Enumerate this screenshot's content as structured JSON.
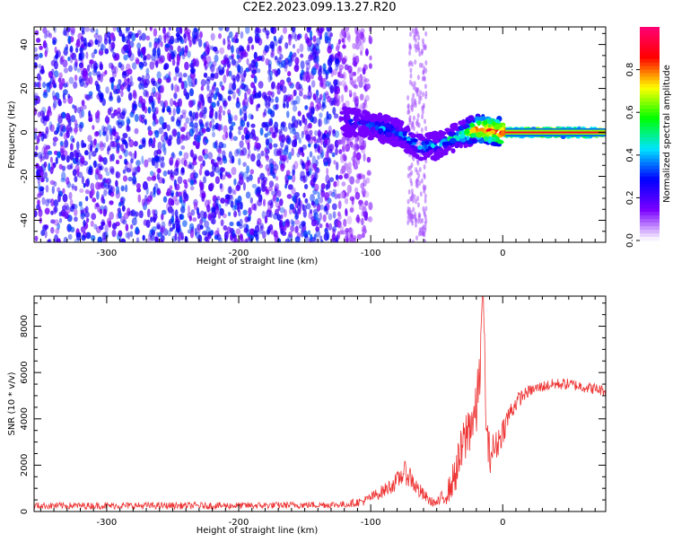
{
  "title": "C2E2.2023.099.13.27.R20",
  "chart_data": [
    {
      "type": "heatmap",
      "title": "C2E2.2023.099.13.27.R20",
      "xlabel": "Height of straight line (km)",
      "ylabel": "Frequency (Hz)",
      "xlim": [
        -355,
        78
      ],
      "ylim": [
        -50,
        48
      ],
      "x_ticks": [
        -300,
        -200,
        -100,
        0
      ],
      "y_ticks": [
        40,
        20,
        0,
        -20,
        -40
      ],
      "grid": false,
      "colorbar": {
        "label": "Normalized spectral amplitude",
        "range": [
          0.0,
          1.0
        ],
        "ticks": [
          0.0,
          0.2,
          0.4,
          0.6,
          0.8
        ],
        "colormap": [
          "#ffffff",
          "#7a00ff",
          "#0000ff",
          "#00e5ff",
          "#00ff00",
          "#ffff00",
          "#ff0000",
          "#ff0077"
        ]
      },
      "description_of_content": "Dense noise across all frequencies for heights < -100 km; a narrowband signal near 0 Hz emerges from about -120 km, drifting to about -10 Hz near -60 km and converging to a strong line at ~0 Hz from 0 km onward.",
      "signal_track": {
        "x": [
          -120,
          -100,
          -80,
          -60,
          -50,
          -40,
          -30,
          -20,
          -10,
          0,
          20,
          40,
          60,
          78
        ],
        "freq": [
          5,
          3,
          0,
          -7,
          -6,
          -3,
          -1,
          2,
          1,
          0,
          0,
          0,
          0,
          0
        ],
        "amplitude": [
          0.3,
          0.35,
          0.4,
          0.45,
          0.4,
          0.45,
          0.55,
          0.8,
          0.85,
          0.9,
          0.95,
          0.95,
          0.95,
          0.95
        ]
      }
    },
    {
      "type": "line",
      "xlabel": "Height of straight line (km)",
      "ylabel": "SNR (10 * v/v)",
      "xlim": [
        -355,
        78
      ],
      "ylim": [
        0,
        9300
      ],
      "x_ticks": [
        -300,
        -200,
        -100,
        0
      ],
      "y_ticks": [
        0,
        2000,
        4000,
        6000,
        8000
      ],
      "grid": false,
      "series": [
        {
          "color": "#ee3333",
          "x": [
            -355,
            -300,
            -200,
            -120,
            -105,
            -90,
            -80,
            -75,
            -70,
            -65,
            -60,
            -55,
            -50,
            -45,
            -40,
            -35,
            -30,
            -25,
            -20,
            -17,
            -15,
            -12,
            -10,
            -5,
            0,
            5,
            10,
            15,
            20,
            30,
            40,
            50,
            60,
            70,
            78
          ],
          "y": [
            250,
            250,
            250,
            300,
            450,
            900,
            1300,
            1700,
            1500,
            1000,
            700,
            450,
            350,
            600,
            1000,
            1800,
            2800,
            3800,
            4200,
            6500,
            9300,
            3000,
            2500,
            2800,
            3500,
            4200,
            4700,
            5000,
            5200,
            5400,
            5500,
            5500,
            5400,
            5300,
            5200
          ],
          "noise_amplitude": [
            150,
            150,
            150,
            150,
            200,
            300,
            400,
            500,
            500,
            400,
            300,
            200,
            200,
            400,
            600,
            900,
            1200,
            1300,
            1200,
            1500,
            1500,
            1200,
            900,
            700,
            600,
            500,
            400,
            300,
            250,
            250,
            250,
            250,
            250,
            250,
            250
          ]
        }
      ]
    }
  ]
}
